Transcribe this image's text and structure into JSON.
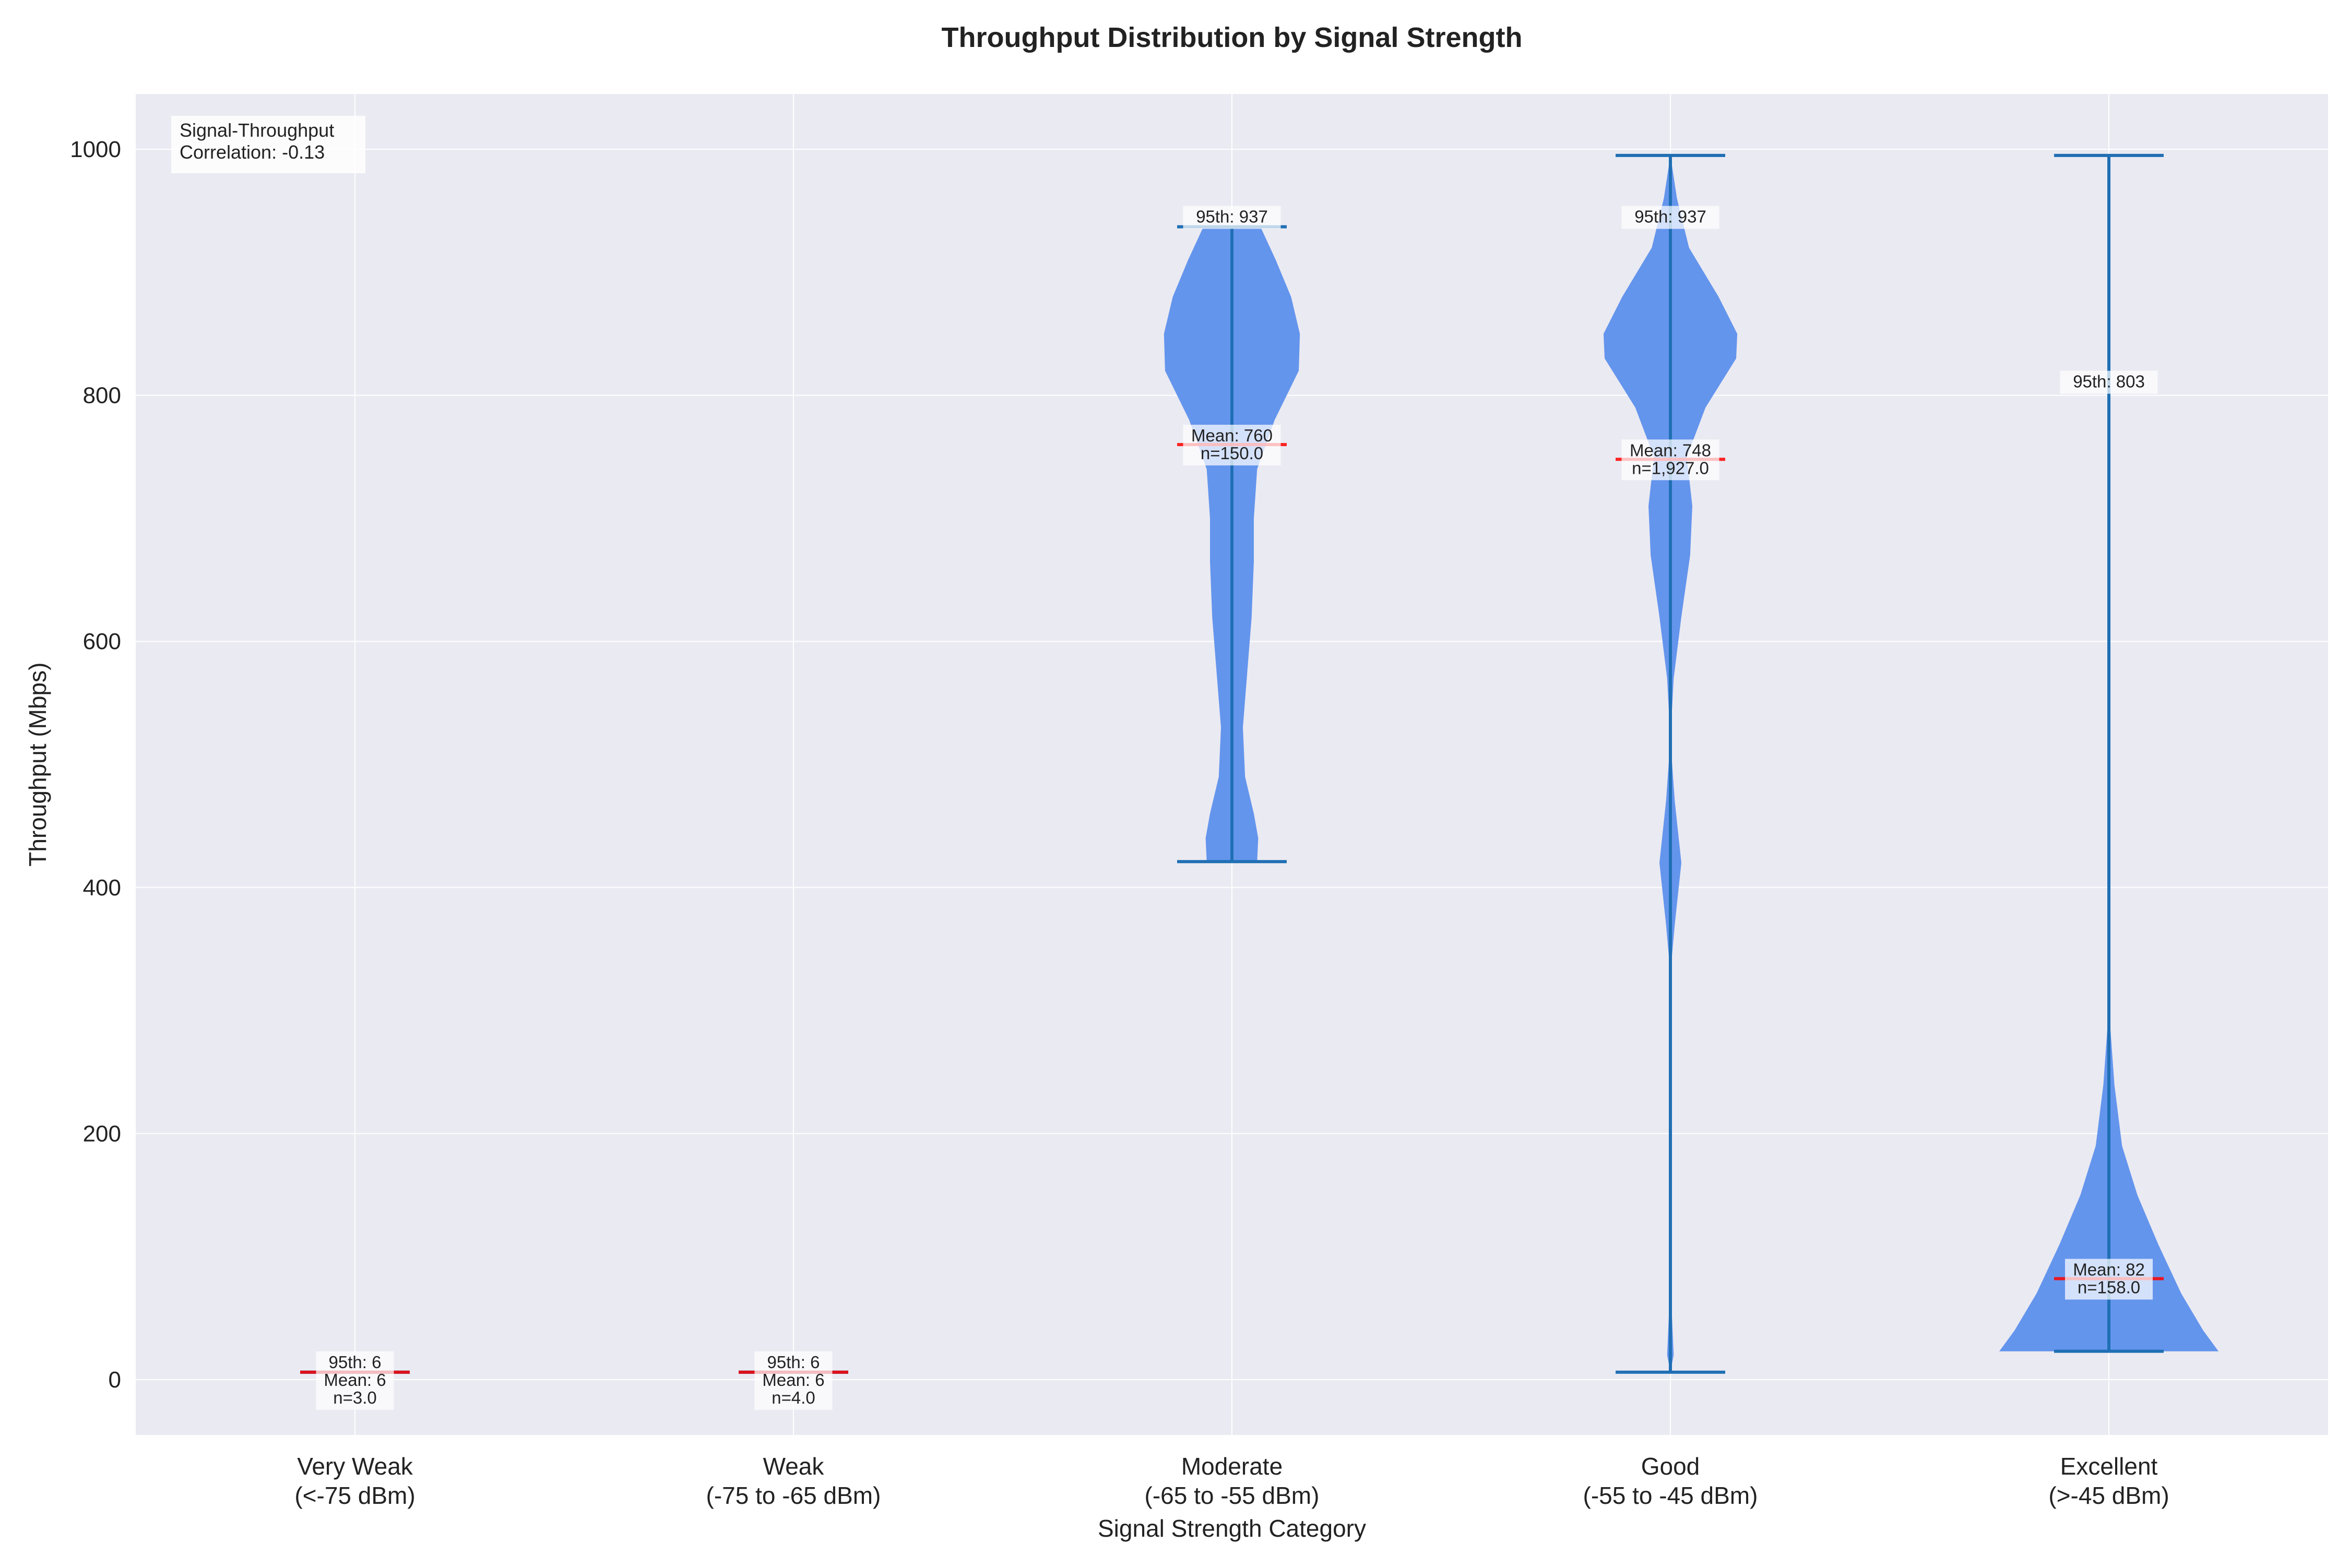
{
  "chart_data": {
    "type": "violin",
    "title": "Throughput Distribution by Signal Strength",
    "xlabel": "Signal Strength Category",
    "ylabel": "Throughput (Mbps)",
    "ylim": [
      -45,
      1045
    ],
    "yticks": [
      0,
      200,
      400,
      600,
      800,
      1000
    ],
    "grid": true,
    "colors": {
      "background": "#eaeaf2",
      "violin": "#6495ED",
      "line": "#1f6fb4",
      "mean_line": "#ff0000",
      "grid": "#ffffff"
    },
    "correlation_text": {
      "line1": "Signal-Throughput",
      "line2": "Correlation: -0.13"
    },
    "categories": [
      {
        "line1": "Very Weak",
        "line2": "(<-75 dBm)",
        "min": 6,
        "max": 6,
        "mean": 6,
        "p95_label": "95th: 6",
        "mean_label": "Mean: 6",
        "n_label": "n=3.0",
        "density": []
      },
      {
        "line1": "Weak",
        "line2": "(-75 to -65 dBm)",
        "min": 6,
        "max": 6,
        "mean": 6,
        "p95_label": "95th: 6",
        "mean_label": "Mean: 6",
        "n_label": "n=4.0",
        "density": []
      },
      {
        "line1": "Moderate",
        "line2": "(-65 to -55 dBm)",
        "min": 421,
        "max": 937,
        "mean": 760,
        "p95_label": "95th: 937",
        "mean_label": "Mean: 760",
        "n_label": "n=150.0",
        "density": [
          [
            421,
            0.23
          ],
          [
            440,
            0.24
          ],
          [
            460,
            0.2
          ],
          [
            490,
            0.12
          ],
          [
            530,
            0.1
          ],
          [
            575,
            0.14
          ],
          [
            620,
            0.18
          ],
          [
            665,
            0.2
          ],
          [
            700,
            0.2
          ],
          [
            740,
            0.23
          ],
          [
            780,
            0.39
          ],
          [
            820,
            0.61
          ],
          [
            850,
            0.62
          ],
          [
            880,
            0.54
          ],
          [
            910,
            0.4
          ],
          [
            937,
            0.26
          ]
        ]
      },
      {
        "line1": "Good",
        "line2": "(-55 to -45 dBm)",
        "min": 6,
        "max": 995,
        "mean": 748,
        "p95_label": "95th: 937",
        "mean_label": "Mean: 748",
        "n_label": "n=1,927.0",
        "density": [
          [
            6,
            0.0
          ],
          [
            20,
            0.03
          ],
          [
            60,
            0.01
          ],
          [
            120,
            0.0
          ],
          [
            250,
            0.0
          ],
          [
            330,
            0.0
          ],
          [
            370,
            0.04
          ],
          [
            420,
            0.1
          ],
          [
            470,
            0.04
          ],
          [
            520,
            0.0
          ],
          [
            570,
            0.03
          ],
          [
            620,
            0.1
          ],
          [
            670,
            0.18
          ],
          [
            710,
            0.2
          ],
          [
            750,
            0.15
          ],
          [
            790,
            0.32
          ],
          [
            830,
            0.6
          ],
          [
            850,
            0.61
          ],
          [
            880,
            0.44
          ],
          [
            920,
            0.17
          ],
          [
            960,
            0.06
          ],
          [
            995,
            0.0
          ]
        ]
      },
      {
        "line1": "Excellent",
        "line2": "(>-45 dBm)",
        "min": 23,
        "max": 995,
        "mean": 82,
        "p95_label": "95th: 803",
        "mean_label": "Mean: 82",
        "n_label": "n=158.0",
        "density": [
          [
            23,
            1.0
          ],
          [
            40,
            0.86
          ],
          [
            70,
            0.66
          ],
          [
            110,
            0.45
          ],
          [
            150,
            0.26
          ],
          [
            190,
            0.12
          ],
          [
            240,
            0.05
          ],
          [
            290,
            0.01
          ],
          [
            350,
            0.0
          ],
          [
            720,
            0.0
          ],
          [
            760,
            0.0
          ],
          [
            820,
            0.01
          ],
          [
            860,
            0.0
          ],
          [
            995,
            0.0
          ]
        ]
      }
    ]
  }
}
